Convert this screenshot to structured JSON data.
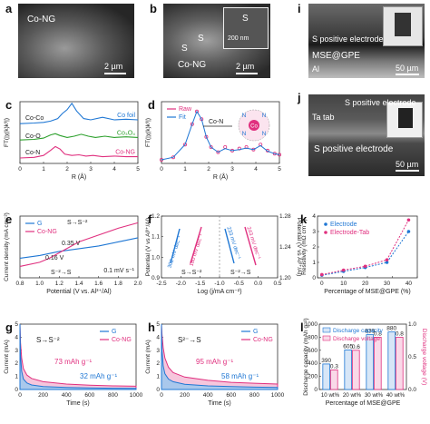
{
  "panels": {
    "a": {
      "letter": "a",
      "label": "Co-NG",
      "scale": "2 µm"
    },
    "b": {
      "letter": "b",
      "label": "Co-NG",
      "s1": "S",
      "s2": "S",
      "inset_s": "S",
      "inset_scale": "200 nm",
      "scale": "2 µm"
    },
    "i": {
      "letter": "i",
      "l1": "S positive electrode",
      "l2": "MSE@GPE",
      "l3": "Al",
      "scale": "50 µm"
    },
    "j": {
      "letter": "j",
      "l1": "S positive electrode",
      "l2": "Ta tab",
      "l3": "S positive electrode",
      "scale": "50 µm"
    }
  },
  "chart_data": [
    {
      "id": "c",
      "letter": "c",
      "type": "line",
      "xlabel": "R (Å)",
      "ylabel": "FT(|χ(k)k³|)",
      "xticks": [
        "0",
        "1",
        "2",
        "3",
        "4",
        "5"
      ],
      "xlim": [
        0,
        5
      ],
      "series": [
        {
          "name": "Co foil",
          "color": "#1f77d4",
          "offset": 2.1,
          "x": [
            0,
            0.6,
            1,
            1.3,
            1.6,
            1.8,
            2.0,
            2.2,
            2.4,
            2.7,
            3.0,
            3.5,
            4.0,
            4.5,
            5.0
          ],
          "y": [
            0,
            0.05,
            0.1,
            0.2,
            0.4,
            0.8,
            1.1,
            1.6,
            1.0,
            0.4,
            0.3,
            0.5,
            0.3,
            0.35,
            0.3
          ]
        },
        {
          "name": "Co₃O₄",
          "color": "#2ca02c",
          "offset": 1.1,
          "x": [
            0,
            0.6,
            1,
            1.3,
            1.5,
            1.7,
            2.0,
            2.3,
            2.6,
            2.9,
            3.2,
            3.6,
            4.0,
            4.5,
            5.0
          ],
          "y": [
            0,
            0.05,
            0.15,
            0.4,
            0.5,
            0.35,
            0.2,
            0.3,
            0.45,
            0.3,
            0.2,
            0.3,
            0.2,
            0.25,
            0.2
          ]
        },
        {
          "name": "Co-NG",
          "color": "#e0307f",
          "offset": 0,
          "x": [
            0,
            0.6,
            1.0,
            1.3,
            1.5,
            1.7,
            1.9,
            2.2,
            2.5,
            2.8,
            3.1,
            3.5,
            4.0,
            4.5,
            5.0
          ],
          "y": [
            0,
            0.05,
            0.2,
            0.6,
            0.9,
            0.7,
            0.3,
            0.2,
            0.25,
            0.15,
            0.2,
            0.1,
            0.15,
            0.1,
            0.1
          ]
        }
      ],
      "annotations": [
        "Co-Co",
        "Co-O",
        "Co-N"
      ]
    },
    {
      "id": "d",
      "letter": "d",
      "type": "line",
      "xlabel": "R (Å)",
      "ylabel": "FT(|χ(k)k³|)",
      "xticks": [
        "0",
        "1",
        "2",
        "3",
        "4",
        "5"
      ],
      "xlim": [
        0,
        5
      ],
      "series": [
        {
          "name": "Raw",
          "color": "#e0307f",
          "x": [
            0,
            0.5,
            1.0,
            1.3,
            1.5,
            1.7,
            1.9,
            2.1,
            2.4,
            2.7,
            3.0,
            3.3,
            3.6,
            3.9,
            4.2,
            4.5,
            4.8,
            5.0
          ],
          "y": [
            0,
            0.05,
            0.3,
            0.7,
            0.95,
            0.8,
            0.45,
            0.25,
            0.15,
            0.25,
            0.18,
            0.22,
            0.25,
            0.2,
            0.3,
            0.18,
            0.12,
            0.1
          ]
        },
        {
          "name": "Fit",
          "color": "#1f77d4",
          "x": [
            0,
            0.5,
            1.0,
            1.3,
            1.5,
            1.7,
            1.9,
            2.1,
            2.4,
            2.7,
            3.0,
            3.3,
            3.6,
            3.9,
            4.2,
            4.5,
            4.8,
            5.0
          ],
          "y": [
            0,
            0.05,
            0.3,
            0.7,
            0.95,
            0.8,
            0.45,
            0.25,
            0.15,
            0.22,
            0.18,
            0.2,
            0.23,
            0.2,
            0.28,
            0.17,
            0.12,
            0.1
          ]
        }
      ],
      "annotations": [
        "Co-N"
      ],
      "inset": {
        "center": "Co",
        "ligand": "N"
      }
    },
    {
      "id": "e",
      "letter": "e",
      "type": "line",
      "xlabel": "Potential (V vs. Al³⁺/Al)",
      "ylabel": "Current density (mA cm⁻²)",
      "xticks": [
        "0.8",
        "1.0",
        "1.2",
        "1.4",
        "1.6",
        "1.8",
        "2.0"
      ],
      "xlim": [
        0.8,
        2.0
      ],
      "series": [
        {
          "name": "G",
          "color": "#1f77d4",
          "x": [
            0.8,
            1.0,
            1.2,
            1.4,
            1.6,
            1.8,
            2.0
          ],
          "y": [
            -0.3,
            -0.2,
            -0.05,
            0.05,
            0.15,
            0.3,
            0.45
          ]
        },
        {
          "name": "Co-NG",
          "color": "#e0307f",
          "x": [
            0.8,
            1.0,
            1.1,
            1.2,
            1.3,
            1.4,
            1.6,
            1.8,
            2.0
          ],
          "y": [
            -0.6,
            -0.45,
            -0.3,
            -0.1,
            0.1,
            0.3,
            0.55,
            0.8,
            1.0
          ]
        }
      ],
      "annotations": [
        "S→S⁻²",
        "0.35 V",
        "0.16 V",
        "S⁻²→S",
        "0.1 mV s⁻¹"
      ]
    },
    {
      "id": "f",
      "letter": "f",
      "type": "line",
      "xlabel": "Log (j/mA cm⁻²)",
      "ylabel": "Potential (V vs Al³⁺/Al)",
      "y2label": "Potential (V vs Al³⁺/Al)",
      "xticks": [
        "-2.5",
        "-2.0",
        "-1.5",
        "-1.0",
        "-0.5",
        "0.0",
        "0.5"
      ],
      "yticks": [
        "0.9",
        "1.0",
        "1.1",
        "1.2"
      ],
      "y2ticks": [
        "1.20",
        "1.24",
        "1.28"
      ],
      "series": [
        {
          "name": "G",
          "color": "#1f77d4"
        },
        {
          "name": "Co-NG",
          "color": "#e0307f"
        }
      ],
      "annotations": [
        "302 mV dec⁻¹",
        "180 mV dec⁻¹",
        "233 mV dec⁻¹",
        "243 mV dec⁻¹",
        "S→S⁻²",
        "S⁻²→S"
      ]
    },
    {
      "id": "k",
      "letter": "k",
      "type": "line",
      "xlabel": "Percentage of MSE@GPE (%)",
      "ylabel": "Resistivity (mΩ cm⁻¹)",
      "xticks": [
        "0",
        "10",
        "20",
        "30",
        "40"
      ],
      "yticks": [
        "0",
        "1",
        "2",
        "3",
        "4"
      ],
      "xlim": [
        -2,
        44
      ],
      "ylim": [
        0,
        4.8
      ],
      "series": [
        {
          "name": "Electrode",
          "color": "#1f77d4",
          "x": [
            0,
            10,
            20,
            30,
            40
          ],
          "y": [
            0.2,
            0.5,
            0.8,
            1.2,
            3.6
          ]
        },
        {
          "name": "Electrode-Tab",
          "color": "#e0307f",
          "x": [
            0,
            10,
            20,
            30,
            40
          ],
          "y": [
            0.25,
            0.6,
            0.9,
            1.4,
            4.5
          ]
        }
      ]
    },
    {
      "id": "g",
      "letter": "g",
      "type": "area",
      "xlabel": "Time (s)",
      "ylabel": "Current (mA)",
      "xticks": [
        "0",
        "200",
        "400",
        "600",
        "800",
        "1000"
      ],
      "yticks": [
        "0",
        "1",
        "2",
        "3",
        "4",
        "5"
      ],
      "xlim": [
        0,
        1000
      ],
      "ylim": [
        0,
        5
      ],
      "series": [
        {
          "name": "G",
          "color": "#1f77d4",
          "x": [
            0,
            5,
            15,
            30,
            60,
            100,
            200,
            400,
            600,
            800,
            1000
          ],
          "y": [
            5,
            2.6,
            1.4,
            0.8,
            0.5,
            0.35,
            0.22,
            0.15,
            0.12,
            0.1,
            0.09
          ]
        },
        {
          "name": "Co-NG",
          "color": "#e0307f",
          "x": [
            0,
            5,
            15,
            30,
            60,
            100,
            200,
            400,
            600,
            800,
            1000
          ],
          "y": [
            5,
            3.6,
            2.4,
            1.6,
            1.1,
            0.85,
            0.6,
            0.42,
            0.33,
            0.28,
            0.25
          ]
        }
      ],
      "annotations": [
        "S→S⁻²",
        "73 mAh g⁻¹",
        "32 mAh g⁻¹"
      ]
    },
    {
      "id": "h",
      "letter": "h",
      "type": "area",
      "xlabel": "Time (s)",
      "ylabel": "Current (mA)",
      "xticks": [
        "0",
        "200",
        "400",
        "600",
        "800",
        "1000"
      ],
      "yticks": [
        "0",
        "1",
        "2",
        "3",
        "4",
        "5"
      ],
      "xlim": [
        0,
        1000
      ],
      "ylim": [
        0,
        5
      ],
      "series": [
        {
          "name": "G",
          "color": "#1f77d4",
          "x": [
            0,
            5,
            15,
            30,
            60,
            100,
            200,
            400,
            600,
            800,
            1000
          ],
          "y": [
            5,
            3.0,
            1.8,
            1.2,
            0.8,
            0.6,
            0.4,
            0.28,
            0.22,
            0.18,
            0.16
          ]
        },
        {
          "name": "Co-NG",
          "color": "#e0307f",
          "x": [
            0,
            5,
            15,
            30,
            60,
            100,
            200,
            400,
            600,
            800,
            1000
          ],
          "y": [
            5,
            4.2,
            3.2,
            2.4,
            1.7,
            1.3,
            0.95,
            0.7,
            0.55,
            0.48,
            0.42
          ]
        }
      ],
      "annotations": [
        "S²⁻→S",
        "95 mAh g⁻¹",
        "58 mAh g⁻¹"
      ]
    },
    {
      "id": "l",
      "letter": "l",
      "type": "bar",
      "xlabel": "Percentage of MSE@GPE",
      "ylabel": "Discharge capacity (mAh g⁻¹)",
      "y2label": "Discharge voltage (V)",
      "categories": [
        "10 wt%",
        "20 wt%",
        "30 wt%",
        "40 wt%"
      ],
      "ylim": [
        0,
        1000
      ],
      "y2lim": [
        0,
        1.0
      ],
      "yticks": [
        "0",
        "200",
        "400",
        "600",
        "800",
        "1000"
      ],
      "y2ticks": [
        "0.0",
        "0.5",
        "1.0"
      ],
      "series": [
        {
          "name": "Discharge capacity",
          "color": "#1f77d4",
          "values": [
            390,
            605,
            839,
            880
          ],
          "labels": [
            "390",
            "605",
            "839",
            "880"
          ]
        },
        {
          "name": "Discharge voltage",
          "color": "#e0307f",
          "values": [
            0.3,
            0.6,
            0.8,
            0.8
          ],
          "labels": [
            "0.3",
            "0.6",
            "0.8",
            "0.8"
          ]
        }
      ]
    }
  ]
}
